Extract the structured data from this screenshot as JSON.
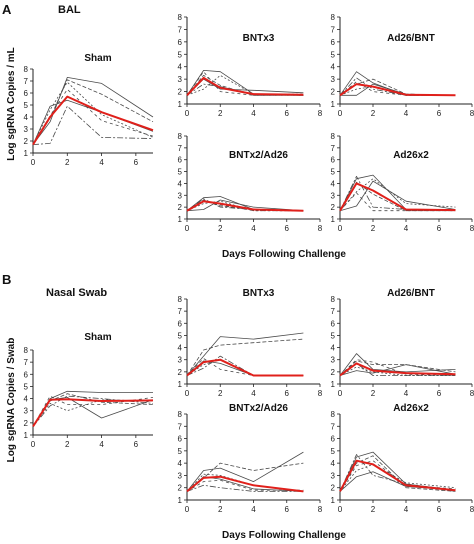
{
  "panels": [
    {
      "id": "A",
      "letter": "A",
      "section": "BAL",
      "ylabel": "Log sgRNA Copies / mL",
      "xlabel": "Days Following Challenge"
    },
    {
      "id": "B",
      "letter": "B",
      "section": "Nasal Swab",
      "ylabel": "Log sgRNA Copies / Swab",
      "xlabel": "Days Following Challenge"
    }
  ],
  "colors": {
    "mean": "#e0201b",
    "individual": "#4a4a4a"
  },
  "chart_data": [
    {
      "type": "line",
      "panel": "A",
      "title": "Sham",
      "xlim": [
        0,
        7
      ],
      "ylim": [
        1,
        8
      ],
      "xticks": [
        0,
        2,
        4,
        6
      ],
      "yticks": [
        1,
        2,
        3,
        4,
        5,
        6,
        7,
        8
      ],
      "x": [
        0,
        1,
        2,
        4,
        7
      ],
      "series": [
        {
          "kind": "individual",
          "values": [
            1.7,
            3.6,
            7.3,
            6.8,
            4.0
          ]
        },
        {
          "kind": "individual",
          "values": [
            1.7,
            3.9,
            7.1,
            5.9,
            3.6
          ]
        },
        {
          "kind": "individual",
          "values": [
            1.7,
            4.6,
            6.9,
            4.2,
            2.3
          ]
        },
        {
          "kind": "individual",
          "values": [
            1.7,
            4.9,
            5.4,
            4.4,
            2.8
          ]
        },
        {
          "kind": "individual",
          "values": [
            1.7,
            1.8,
            4.9,
            2.3,
            2.2
          ]
        },
        {
          "kind": "individual",
          "values": [
            1.7,
            4.1,
            6.3,
            3.7,
            2.4
          ]
        },
        {
          "kind": "mean",
          "values": [
            1.7,
            4.0,
            5.7,
            4.4,
            2.9
          ]
        }
      ]
    },
    {
      "type": "line",
      "panel": "A",
      "title": "BNTx3",
      "xlim": [
        0,
        8
      ],
      "ylim": [
        1,
        8
      ],
      "xticks": [
        0,
        2,
        4,
        6,
        8
      ],
      "yticks": [
        1,
        2,
        3,
        4,
        5,
        6,
        7,
        8
      ],
      "x": [
        0,
        1,
        2,
        4,
        7
      ],
      "series": [
        {
          "kind": "individual",
          "values": [
            1.7,
            3.7,
            3.6,
            1.8,
            1.7
          ]
        },
        {
          "kind": "individual",
          "values": [
            1.7,
            3.3,
            2.5,
            1.7,
            1.7
          ]
        },
        {
          "kind": "individual",
          "values": [
            1.7,
            2.2,
            3.3,
            1.8,
            1.8
          ]
        },
        {
          "kind": "individual",
          "values": [
            1.7,
            3.0,
            2.2,
            2.1,
            1.9
          ]
        },
        {
          "kind": "individual",
          "values": [
            1.7,
            2.6,
            2.4,
            1.8,
            1.7
          ]
        },
        {
          "kind": "individual",
          "values": [
            1.7,
            3.6,
            2.0,
            1.7,
            1.7
          ]
        },
        {
          "kind": "mean",
          "values": [
            1.7,
            3.1,
            2.3,
            1.8,
            1.75
          ]
        }
      ]
    },
    {
      "type": "line",
      "panel": "A",
      "title": "Ad26/BNT",
      "xlim": [
        0,
        8
      ],
      "ylim": [
        1,
        8
      ],
      "xticks": [
        0,
        2,
        4,
        6,
        8
      ],
      "yticks": [
        1,
        2,
        3,
        4,
        5,
        6,
        7,
        8
      ],
      "x": [
        0,
        1,
        2,
        4,
        7
      ],
      "series": [
        {
          "kind": "individual",
          "values": [
            1.7,
            3.6,
            2.7,
            1.7,
            1.7
          ]
        },
        {
          "kind": "individual",
          "values": [
            1.7,
            2.6,
            3.0,
            1.8,
            1.7
          ]
        },
        {
          "kind": "individual",
          "values": [
            1.7,
            2.2,
            2.4,
            1.7,
            1.7
          ]
        },
        {
          "kind": "individual",
          "values": [
            1.7,
            1.7,
            2.6,
            1.8,
            1.7
          ]
        },
        {
          "kind": "individual",
          "values": [
            1.7,
            3.1,
            2.2,
            1.7,
            1.7
          ]
        },
        {
          "kind": "individual",
          "values": [
            1.7,
            2.8,
            2.0,
            1.7,
            1.7
          ]
        },
        {
          "kind": "mean",
          "values": [
            1.7,
            2.6,
            2.4,
            1.75,
            1.7
          ]
        }
      ]
    },
    {
      "type": "line",
      "panel": "A",
      "title": "BNTx2/Ad26",
      "xlim": [
        0,
        8
      ],
      "ylim": [
        1,
        8
      ],
      "xticks": [
        0,
        2,
        4,
        6,
        8
      ],
      "yticks": [
        1,
        2,
        3,
        4,
        5,
        6,
        7,
        8
      ],
      "x": [
        0,
        1,
        2,
        4,
        7
      ],
      "series": [
        {
          "kind": "individual",
          "values": [
            1.7,
            2.8,
            2.9,
            1.8,
            1.7
          ]
        },
        {
          "kind": "individual",
          "values": [
            1.7,
            2.6,
            2.1,
            1.8,
            1.7
          ]
        },
        {
          "kind": "individual",
          "values": [
            1.7,
            2.3,
            2.5,
            1.7,
            1.7
          ]
        },
        {
          "kind": "individual",
          "values": [
            1.7,
            1.8,
            2.6,
            2.0,
            1.7
          ]
        },
        {
          "kind": "individual",
          "values": [
            1.7,
            2.7,
            2.0,
            1.8,
            1.7
          ]
        },
        {
          "kind": "individual",
          "values": [
            1.7,
            2.5,
            2.2,
            1.7,
            1.7
          ]
        },
        {
          "kind": "mean",
          "values": [
            1.7,
            2.5,
            2.3,
            1.8,
            1.7
          ]
        }
      ]
    },
    {
      "type": "line",
      "panel": "A",
      "title": "Ad26x2",
      "xlim": [
        0,
        8
      ],
      "ylim": [
        1,
        8
      ],
      "xticks": [
        0,
        2,
        4,
        6,
        8
      ],
      "yticks": [
        1,
        2,
        3,
        4,
        5,
        6,
        7,
        8
      ],
      "x": [
        0,
        1,
        2,
        4,
        7
      ],
      "series": [
        {
          "kind": "individual",
          "values": [
            1.7,
            4.4,
            4.7,
            1.8,
            1.8
          ]
        },
        {
          "kind": "individual",
          "values": [
            1.7,
            4.1,
            3.1,
            1.7,
            1.7
          ]
        },
        {
          "kind": "individual",
          "values": [
            1.7,
            3.3,
            4.4,
            2.3,
            2.0
          ]
        },
        {
          "kind": "individual",
          "values": [
            1.7,
            2.1,
            4.2,
            2.5,
            1.8
          ]
        },
        {
          "kind": "individual",
          "values": [
            1.7,
            4.6,
            2.0,
            1.8,
            1.7
          ]
        },
        {
          "kind": "individual",
          "values": [
            1.7,
            3.2,
            1.7,
            1.7,
            1.7
          ]
        },
        {
          "kind": "mean",
          "values": [
            1.7,
            4.0,
            3.4,
            1.8,
            1.75
          ]
        }
      ]
    },
    {
      "type": "line",
      "panel": "B",
      "title": "Sham",
      "xlim": [
        0,
        7
      ],
      "ylim": [
        1,
        8
      ],
      "xticks": [
        0,
        2,
        4,
        6
      ],
      "yticks": [
        1,
        2,
        3,
        4,
        5,
        6,
        7,
        8
      ],
      "x": [
        0,
        1,
        2,
        4,
        7
      ],
      "series": [
        {
          "kind": "individual",
          "values": [
            1.7,
            4.0,
            4.6,
            4.5,
            4.5
          ]
        },
        {
          "kind": "individual",
          "values": [
            1.7,
            3.8,
            4.4,
            3.7,
            3.5
          ]
        },
        {
          "kind": "individual",
          "values": [
            1.7,
            3.6,
            3.0,
            3.9,
            3.8
          ]
        },
        {
          "kind": "individual",
          "values": [
            1.7,
            3.9,
            4.1,
            2.4,
            3.9
          ]
        },
        {
          "kind": "individual",
          "values": [
            1.7,
            3.4,
            4.2,
            4.0,
            3.6
          ]
        },
        {
          "kind": "individual",
          "values": [
            1.7,
            4.2,
            3.5,
            3.5,
            4.1
          ]
        },
        {
          "kind": "mean",
          "values": [
            1.7,
            3.9,
            3.95,
            3.8,
            3.85
          ]
        }
      ]
    },
    {
      "type": "line",
      "panel": "B",
      "title": "BNTx3",
      "xlim": [
        0,
        8
      ],
      "ylim": [
        1,
        8
      ],
      "xticks": [
        0,
        2,
        4,
        6,
        8
      ],
      "yticks": [
        1,
        2,
        3,
        4,
        5,
        6,
        7,
        8
      ],
      "x": [
        0,
        1,
        2,
        4,
        7
      ],
      "series": [
        {
          "kind": "individual",
          "values": [
            1.7,
            3.3,
            4.9,
            4.7,
            5.2
          ]
        },
        {
          "kind": "individual",
          "values": [
            1.7,
            3.8,
            4.2,
            4.4,
            4.7
          ]
        },
        {
          "kind": "individual",
          "values": [
            1.7,
            2.6,
            3.0,
            1.7,
            1.7
          ]
        },
        {
          "kind": "individual",
          "values": [
            1.7,
            2.9,
            2.7,
            1.7,
            1.7
          ]
        },
        {
          "kind": "individual",
          "values": [
            1.7,
            2.3,
            3.3,
            1.7,
            1.7
          ]
        },
        {
          "kind": "individual",
          "values": [
            1.7,
            3.1,
            2.2,
            1.7,
            1.7
          ]
        },
        {
          "kind": "mean",
          "values": [
            1.7,
            2.8,
            3.0,
            1.7,
            1.7
          ]
        }
      ]
    },
    {
      "type": "line",
      "panel": "B",
      "title": "Ad26/BNT",
      "xlim": [
        0,
        8
      ],
      "ylim": [
        1,
        8
      ],
      "xticks": [
        0,
        2,
        4,
        6,
        8
      ],
      "yticks": [
        1,
        2,
        3,
        4,
        5,
        6,
        7,
        8
      ],
      "x": [
        0,
        1,
        2,
        4,
        7
      ],
      "series": [
        {
          "kind": "individual",
          "values": [
            1.7,
            3.5,
            2.2,
            2.0,
            2.2
          ]
        },
        {
          "kind": "individual",
          "values": [
            1.7,
            2.9,
            2.6,
            2.6,
            2.0
          ]
        },
        {
          "kind": "individual",
          "values": [
            1.7,
            2.4,
            2.0,
            1.7,
            1.7
          ]
        },
        {
          "kind": "individual",
          "values": [
            1.7,
            2.1,
            1.9,
            2.6,
            1.8
          ]
        },
        {
          "kind": "individual",
          "values": [
            1.7,
            2.7,
            1.7,
            1.7,
            1.7
          ]
        },
        {
          "kind": "individual",
          "values": [
            1.7,
            3.0,
            2.8,
            1.8,
            1.7
          ]
        },
        {
          "kind": "mean",
          "values": [
            1.7,
            2.7,
            2.1,
            1.9,
            1.8
          ]
        }
      ]
    },
    {
      "type": "line",
      "panel": "B",
      "title": "BNTx2/Ad26",
      "xlim": [
        0,
        8
      ],
      "ylim": [
        1,
        8
      ],
      "xticks": [
        0,
        2,
        4,
        6,
        8
      ],
      "yticks": [
        1,
        2,
        3,
        4,
        5,
        6,
        7,
        8
      ],
      "x": [
        0,
        1,
        2,
        4,
        7
      ],
      "series": [
        {
          "kind": "individual",
          "values": [
            1.7,
            3.4,
            3.6,
            2.5,
            4.9
          ]
        },
        {
          "kind": "individual",
          "values": [
            1.7,
            2.8,
            4.0,
            3.4,
            4.0
          ]
        },
        {
          "kind": "individual",
          "values": [
            1.7,
            3.1,
            3.0,
            2.2,
            1.7
          ]
        },
        {
          "kind": "individual",
          "values": [
            1.7,
            2.9,
            2.7,
            1.9,
            1.7
          ]
        },
        {
          "kind": "individual",
          "values": [
            1.7,
            2.2,
            2.0,
            1.7,
            1.7
          ]
        },
        {
          "kind": "individual",
          "values": [
            1.7,
            2.5,
            2.6,
            1.8,
            1.8
          ]
        },
        {
          "kind": "mean",
          "values": [
            1.7,
            2.8,
            2.9,
            2.2,
            1.7
          ]
        }
      ]
    },
    {
      "type": "line",
      "panel": "B",
      "title": "Ad26x2",
      "xlim": [
        0,
        8
      ],
      "ylim": [
        1,
        8
      ],
      "xticks": [
        0,
        2,
        4,
        6,
        8
      ],
      "yticks": [
        1,
        2,
        3,
        4,
        5,
        6,
        7,
        8
      ],
      "x": [
        0,
        1,
        2,
        4,
        7
      ],
      "series": [
        {
          "kind": "individual",
          "values": [
            1.7,
            4.5,
            4.9,
            2.3,
            1.8
          ]
        },
        {
          "kind": "individual",
          "values": [
            1.7,
            4.0,
            4.6,
            2.0,
            1.7
          ]
        },
        {
          "kind": "individual",
          "values": [
            1.7,
            3.4,
            3.9,
            2.4,
            2.0
          ]
        },
        {
          "kind": "individual",
          "values": [
            1.7,
            2.9,
            3.3,
            2.1,
            1.8
          ]
        },
        {
          "kind": "individual",
          "values": [
            1.7,
            4.7,
            3.0,
            2.3,
            1.7
          ]
        },
        {
          "kind": "individual",
          "values": [
            1.7,
            3.8,
            4.2,
            2.2,
            1.9
          ]
        },
        {
          "kind": "mean",
          "values": [
            1.7,
            4.2,
            3.9,
            2.2,
            1.8
          ]
        }
      ]
    }
  ]
}
